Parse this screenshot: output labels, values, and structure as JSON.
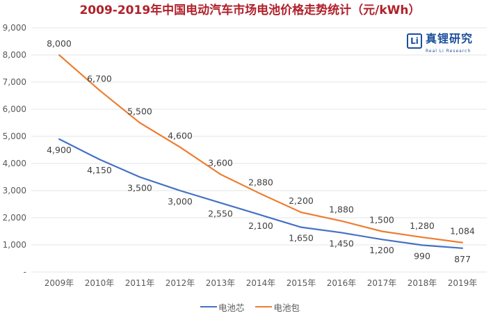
{
  "title": "2009-2019年中国电动汽车市场电池价格走势统计（元/kWh）",
  "logo": {
    "mark": "Li",
    "text": "真锂研究",
    "sub": "Real Li Research"
  },
  "chart_data": {
    "type": "line",
    "title": "2009-2019年中国电动汽车市场电池价格走势统计（元/kWh）",
    "categories": [
      "2009年",
      "2010年",
      "2011年",
      "2012年",
      "2013年",
      "2014年",
      "2015年",
      "2016年",
      "2017年",
      "2018年",
      "2019年"
    ],
    "yticks": [
      "-",
      "1,000",
      "2,000",
      "3,000",
      "4,000",
      "5,000",
      "6,000",
      "7,000",
      "8,000",
      "9,000"
    ],
    "ylim": [
      0,
      9000
    ],
    "grid": true,
    "legend": "bottom",
    "series": [
      {
        "name": "电池芯",
        "color": "#4472c4",
        "values": [
          4900,
          4150,
          3500,
          3000,
          2550,
          2100,
          1650,
          1450,
          1200,
          990,
          877
        ],
        "labels": [
          "4,900",
          "4,150",
          "3,500",
          "3,000",
          "2,550",
          "2,100",
          "1,650",
          "1,450",
          "1,200",
          "990",
          "877"
        ]
      },
      {
        "name": "电池包",
        "color": "#ed7d31",
        "values": [
          8000,
          6700,
          5500,
          4600,
          3600,
          2880,
          2200,
          1880,
          1500,
          1280,
          1084
        ],
        "labels": [
          "8,000",
          "6,700",
          "5,500",
          "4,600",
          "3,600",
          "2,880",
          "2,200",
          "1,880",
          "1,500",
          "1,280",
          "1,084"
        ]
      }
    ]
  }
}
